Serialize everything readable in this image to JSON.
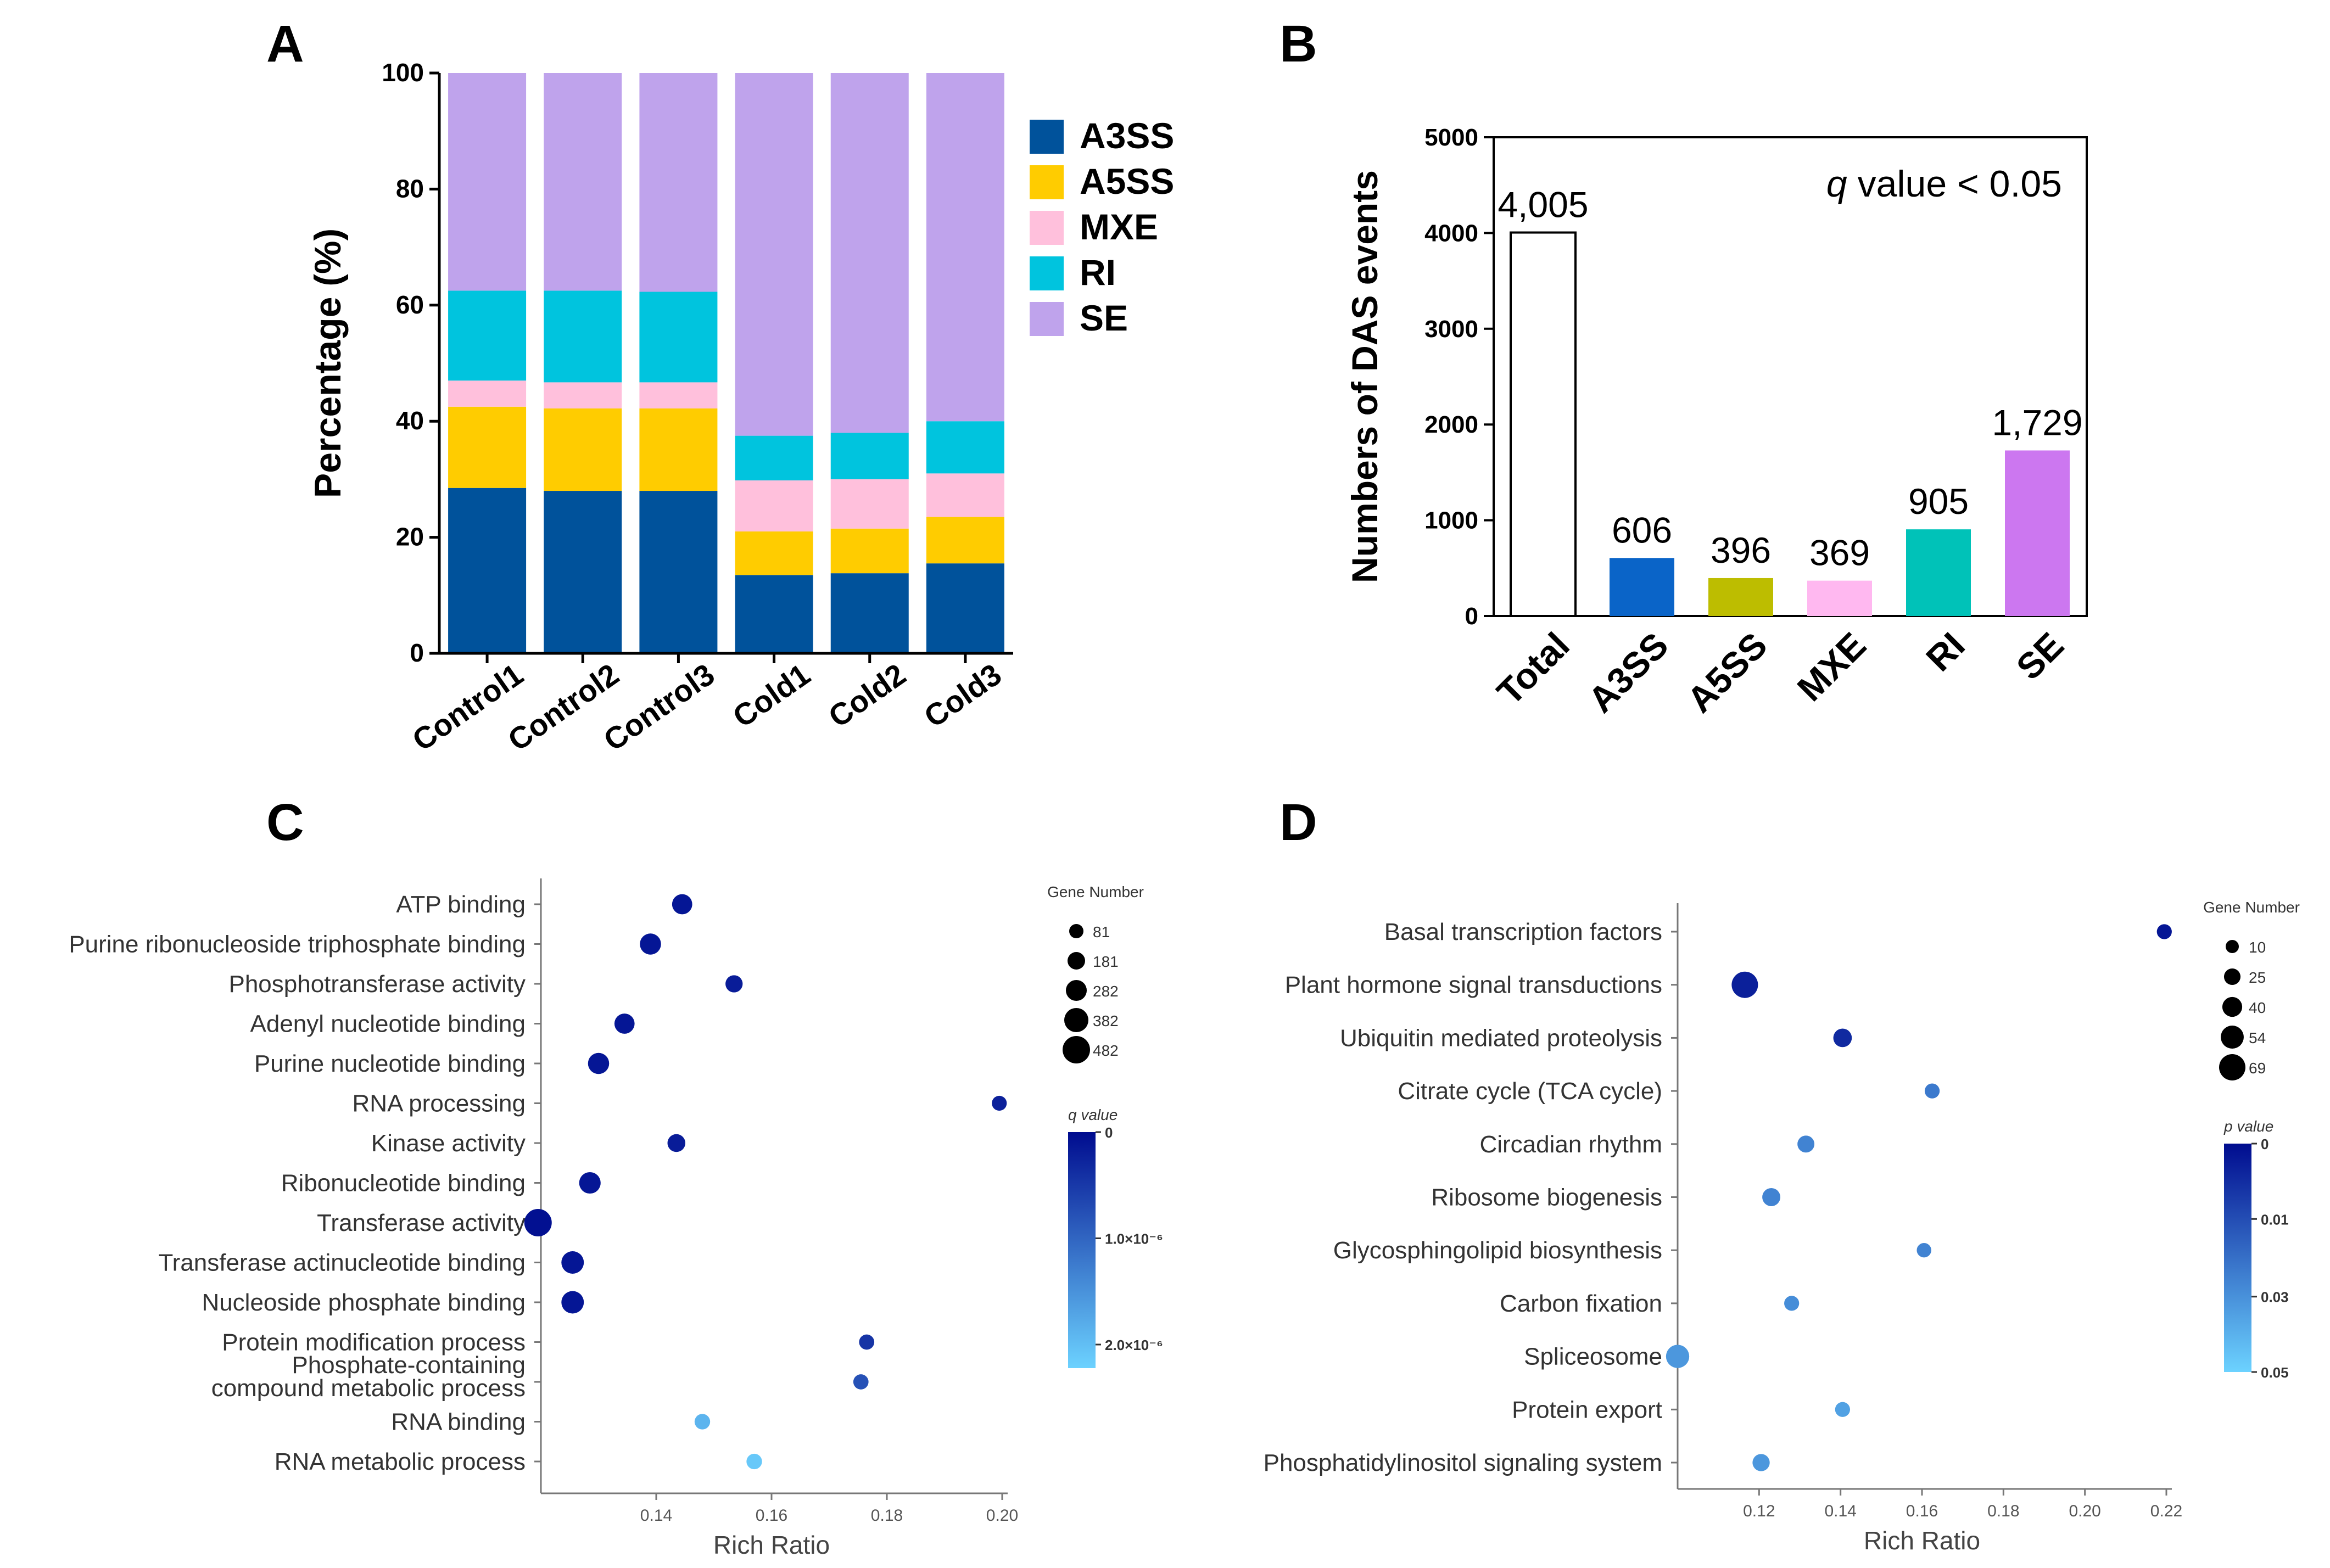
{
  "colors": {
    "A3SS": "#00529b",
    "A5SS": "#ffcc00",
    "MXE": "#ffc0dc",
    "RI": "#00c4de",
    "SE": "#bfa3ec",
    "barB": [
      "#ffffff",
      "#0a64c8",
      "#bdbd00",
      "#ffb8f0",
      "#00c2b8",
      "#cc77f0"
    ],
    "dark": "#000c8f",
    "light": "#6cd2ff"
  },
  "chart_data": [
    {
      "panel": "A",
      "type": "bar",
      "stacked": true,
      "ylabel": "Percentage (%)",
      "ylim": [
        0,
        100
      ],
      "yticks": [
        "0",
        "20",
        "40",
        "60",
        "80",
        "100"
      ],
      "categories": [
        "Control1",
        "Control2",
        "Control3",
        "Cold1",
        "Cold2",
        "Cold3"
      ],
      "series": [
        {
          "name": "A3SS",
          "values": [
            28.5,
            28.0,
            28.0,
            13.5,
            13.8,
            15.5
          ]
        },
        {
          "name": "A5SS",
          "values": [
            14.0,
            14.2,
            14.2,
            7.5,
            7.7,
            8.0
          ]
        },
        {
          "name": "MXE",
          "values": [
            4.5,
            4.5,
            4.5,
            8.8,
            8.5,
            7.5
          ]
        },
        {
          "name": "RI",
          "values": [
            15.5,
            15.8,
            15.6,
            7.7,
            8.0,
            9.0
          ]
        },
        {
          "name": "SE",
          "values": [
            37.5,
            37.5,
            37.7,
            62.5,
            62.0,
            60.0
          ]
        }
      ]
    },
    {
      "panel": "B",
      "type": "bar",
      "ylabel": "Numbers of DAS events",
      "ylim": [
        0,
        5000
      ],
      "yticks": [
        "0",
        "1000",
        "2000",
        "3000",
        "4000",
        "5000"
      ],
      "annotation": "q value < 0.05",
      "annotation_italic": "q",
      "annotation_rest": " value < 0.05",
      "categories": [
        "Total",
        "A3SS",
        "A5SS",
        "MXE",
        "RI",
        "SE"
      ],
      "values": [
        4005,
        606,
        396,
        369,
        905,
        1729
      ],
      "data_labels": [
        "4,005",
        "606",
        "396",
        "369",
        "905",
        "1,729"
      ]
    },
    {
      "panel": "C",
      "type": "scatter",
      "xlabel": "Rich Ratio",
      "xlim": [
        0.12,
        0.2
      ],
      "xticks": [
        "0.14",
        "0.16",
        "0.18",
        "0.20"
      ],
      "xtick_values": [
        0.14,
        0.16,
        0.18,
        0.2
      ],
      "size_legend_title": "Gene Number",
      "size_legend": [
        "81",
        "181",
        "282",
        "382",
        "482"
      ],
      "size_legend_values": [
        81,
        181,
        282,
        382,
        482
      ],
      "color_legend_title": "q value",
      "color_legend_ticks": [
        "0",
        "1.0×10⁻⁶",
        "2.0×10⁻⁶"
      ],
      "points": [
        {
          "term": "ATP binding",
          "x": 0.1445,
          "size": 260,
          "shade": 0.05
        },
        {
          "term": "Purine ribonucleoside triphosphate binding",
          "x": 0.139,
          "size": 290,
          "shade": 0.05
        },
        {
          "term": "Phosphotransferase activity",
          "x": 0.1535,
          "size": 170,
          "shade": 0.08
        },
        {
          "term": "Adenyl nucleotide binding",
          "x": 0.1345,
          "size": 260,
          "shade": 0.05
        },
        {
          "term": "Purine nucleotide binding",
          "x": 0.13,
          "size": 290,
          "shade": 0.05
        },
        {
          "term": "RNA processing",
          "x": 0.1995,
          "size": 100,
          "shade": 0.1
        },
        {
          "term": "Kinase activity",
          "x": 0.1435,
          "size": 190,
          "shade": 0.08
        },
        {
          "term": "Ribonucleotide binding",
          "x": 0.1285,
          "size": 300,
          "shade": 0.05
        },
        {
          "term": "Transferase activity",
          "x": 0.1195,
          "size": 482,
          "shade": 0.02
        },
        {
          "term": "Transferase actinucleotide binding",
          "x": 0.1255,
          "size": 330,
          "shade": 0.05
        },
        {
          "term": "Nucleoside phosphate binding",
          "x": 0.1255,
          "size": 330,
          "shade": 0.05
        },
        {
          "term": "Protein modification process",
          "x": 0.1765,
          "size": 110,
          "shade": 0.2
        },
        {
          "term": "Phosphate-containing compound metabolic process",
          "x": 0.1755,
          "size": 110,
          "shade": 0.35
        },
        {
          "term": "RNA binding",
          "x": 0.148,
          "size": 120,
          "shade": 0.85
        },
        {
          "term": "RNA metabolic process",
          "x": 0.157,
          "size": 120,
          "shade": 0.95
        }
      ],
      "term_labels": [
        "ATP binding",
        "Purine ribonucleoside triphosphate binding",
        "Phosphotransferase activity",
        "Adenyl nucleotide binding",
        "Purine nucleotide binding",
        "RNA processing",
        "Kinase activity",
        "Ribonucleotide binding",
        "Transferase activity",
        "Transferase actinucleotide binding",
        "Nucleoside phosphate binding",
        "Protein modification process",
        [
          "Phosphate-containing",
          "compound metabolic process"
        ],
        "RNA binding",
        "RNA metabolic process"
      ]
    },
    {
      "panel": "D",
      "type": "scatter",
      "xlabel": "Rich Ratio",
      "xlim": [
        0.1,
        0.22
      ],
      "xticks": [
        "0.12",
        "0.14",
        "0.16",
        "0.18",
        "0.20",
        "0.22"
      ],
      "xtick_values": [
        0.12,
        0.14,
        0.16,
        0.18,
        0.2,
        0.22
      ],
      "size_legend_title": "Gene Number",
      "size_legend": [
        "10",
        "25",
        "40",
        "54",
        "69"
      ],
      "size_legend_values": [
        10,
        25,
        40,
        54,
        69
      ],
      "color_legend_title": "p value",
      "color_legend_ticks": [
        "0",
        "0.01",
        "0.03",
        "0.05"
      ],
      "points": [
        {
          "term": "Basal transcription factors",
          "x": 0.2195,
          "size": 18,
          "shade": 0.05
        },
        {
          "term": "Plant hormone signal transductions",
          "x": 0.1165,
          "size": 69,
          "shade": 0.1
        },
        {
          "term": "Ubiquitin mediated proteolysis",
          "x": 0.1405,
          "size": 34,
          "shade": 0.15
        },
        {
          "term": "Citrate cycle (TCA cycle)",
          "x": 0.1625,
          "size": 18,
          "shade": 0.55
        },
        {
          "term": "Circadian rhythm",
          "x": 0.1315,
          "size": 27,
          "shade": 0.6
        },
        {
          "term": "Ribosome biogenesis",
          "x": 0.123,
          "size": 32,
          "shade": 0.6
        },
        {
          "term": "Glycosphingolipid biosynthesis",
          "x": 0.1605,
          "size": 16,
          "shade": 0.6
        },
        {
          "term": "Carbon fixation",
          "x": 0.128,
          "size": 18,
          "shade": 0.65
        },
        {
          "term": "Spliceosome",
          "x": 0.1,
          "size": 55,
          "shade": 0.7
        },
        {
          "term": "Protein export",
          "x": 0.1405,
          "size": 18,
          "shade": 0.75
        },
        {
          "term": "Phosphatidylinositol signaling system",
          "x": 0.1205,
          "size": 28,
          "shade": 0.7
        }
      ]
    }
  ],
  "panel_labels": [
    "A",
    "B",
    "C",
    "D"
  ]
}
